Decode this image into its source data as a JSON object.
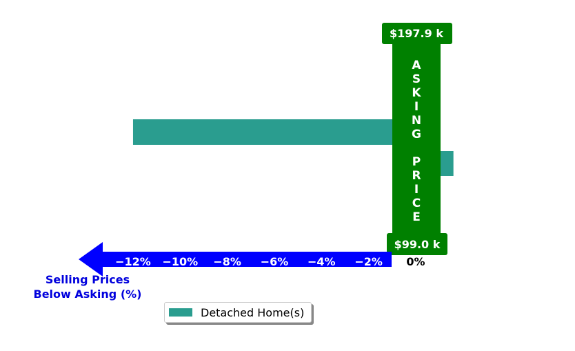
{
  "chart_data": {
    "type": "bar",
    "orientation": "horizontal",
    "series": [
      {
        "name": "Detached Home(s)",
        "color": "#2a9d8f",
        "values": [
          -12.0,
          1.6
        ]
      }
    ],
    "x_ticks": [
      "−12%",
      "−10%",
      "−8%",
      "−6%",
      "−4%",
      "−2%",
      "0%"
    ],
    "x_tick_values": [
      -12,
      -10,
      -8,
      -6,
      -4,
      -2,
      0
    ],
    "xlim": [
      -13.5,
      2.0
    ],
    "xlabel": "Selling Prices\nBelow Asking (%)",
    "asking_price_band": {
      "label": "ASKING PRICE",
      "high_label": "$197.9 k",
      "low_label": "$99.0 k",
      "color": "#008000"
    },
    "arrow_color": "#0000ff",
    "legend": {
      "placement": "bottom-center"
    }
  }
}
